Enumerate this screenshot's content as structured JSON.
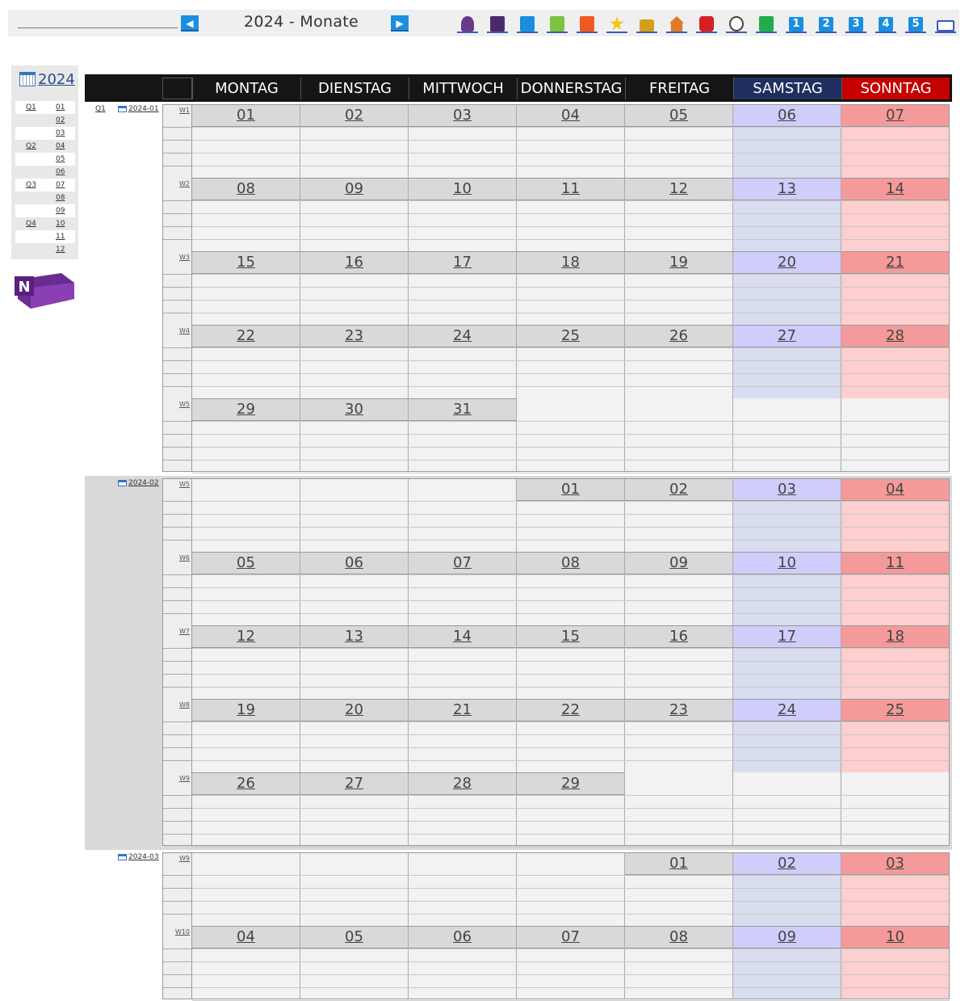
{
  "toolbar": {
    "title": "2024 - Monate",
    "prev_label": "◀",
    "next_label": "▶",
    "icons": [
      {
        "name": "user-icon",
        "color": "#6a3a8a"
      },
      {
        "name": "book-purple-icon",
        "color": "#4b2a6a"
      },
      {
        "name": "book-blue-icon",
        "color": "#1a8fe0"
      },
      {
        "name": "book-green-icon",
        "color": "#7dc242"
      },
      {
        "name": "book-orange-icon",
        "color": "#f05a22"
      },
      {
        "name": "star-icon",
        "color": "#f5c518"
      },
      {
        "name": "lock-icon",
        "color": "#d4a017"
      },
      {
        "name": "house-icon",
        "color": "#e07a2a"
      },
      {
        "name": "bag-icon",
        "color": "#d62020"
      },
      {
        "name": "clock-icon",
        "color": "#444444"
      },
      {
        "name": "checkmark-icon",
        "color": "#1fae4b"
      }
    ],
    "numbers": [
      "1",
      "2",
      "3",
      "4",
      "5"
    ],
    "book_icon": "open-book-icon"
  },
  "sidebar": {
    "year": "2024",
    "quarters": [
      "Q1",
      "Q2",
      "Q3",
      "Q4"
    ],
    "months": [
      "01",
      "02",
      "03",
      "04",
      "05",
      "06",
      "07",
      "08",
      "09",
      "10",
      "11",
      "12"
    ],
    "first_quarter_label": "Q1"
  },
  "header": {
    "days": [
      "MONTAG",
      "DIENSTAG",
      "MITTWOCH",
      "DONNERSTAG",
      "FREITAG",
      "SAMSTAG",
      "SONNTAG"
    ]
  },
  "months": [
    {
      "label": "2024-01",
      "weeks": [
        {
          "wk": "W1",
          "days": [
            "01",
            "02",
            "03",
            "04",
            "05",
            "06",
            "07"
          ]
        },
        {
          "wk": "W2",
          "days": [
            "08",
            "09",
            "10",
            "11",
            "12",
            "13",
            "14"
          ]
        },
        {
          "wk": "W3",
          "days": [
            "15",
            "16",
            "17",
            "18",
            "19",
            "20",
            "21"
          ]
        },
        {
          "wk": "W4",
          "days": [
            "22",
            "23",
            "24",
            "25",
            "26",
            "27",
            "28"
          ]
        },
        {
          "wk": "W5",
          "days": [
            "29",
            "30",
            "31",
            "",
            "",
            "",
            ""
          ]
        }
      ]
    },
    {
      "label": "2024-02",
      "weeks": [
        {
          "wk": "W5",
          "days": [
            "",
            "",
            "",
            "01",
            "02",
            "03",
            "04"
          ]
        },
        {
          "wk": "W6",
          "days": [
            "05",
            "06",
            "07",
            "08",
            "09",
            "10",
            "11"
          ]
        },
        {
          "wk": "W7",
          "days": [
            "12",
            "13",
            "14",
            "15",
            "16",
            "17",
            "18"
          ]
        },
        {
          "wk": "W8",
          "days": [
            "19",
            "20",
            "21",
            "22",
            "23",
            "24",
            "25"
          ]
        },
        {
          "wk": "W9",
          "days": [
            "26",
            "27",
            "28",
            "29",
            "",
            "",
            ""
          ]
        }
      ]
    },
    {
      "label": "2024-03",
      "weeks": [
        {
          "wk": "W9",
          "days": [
            "",
            "",
            "",
            "",
            "01",
            "02",
            "03"
          ]
        },
        {
          "wk": "W10",
          "days": [
            "04",
            "05",
            "06",
            "07",
            "08",
            "09",
            "10"
          ]
        }
      ]
    }
  ],
  "colors": {
    "header_sat": "#1f3060",
    "header_sun": "#c40000",
    "sat_light": "#d8ddf0",
    "sun_light": "#fdcfcf",
    "weekday_light": "#f2f2f2",
    "band_gray": "#d9d9d9"
  }
}
